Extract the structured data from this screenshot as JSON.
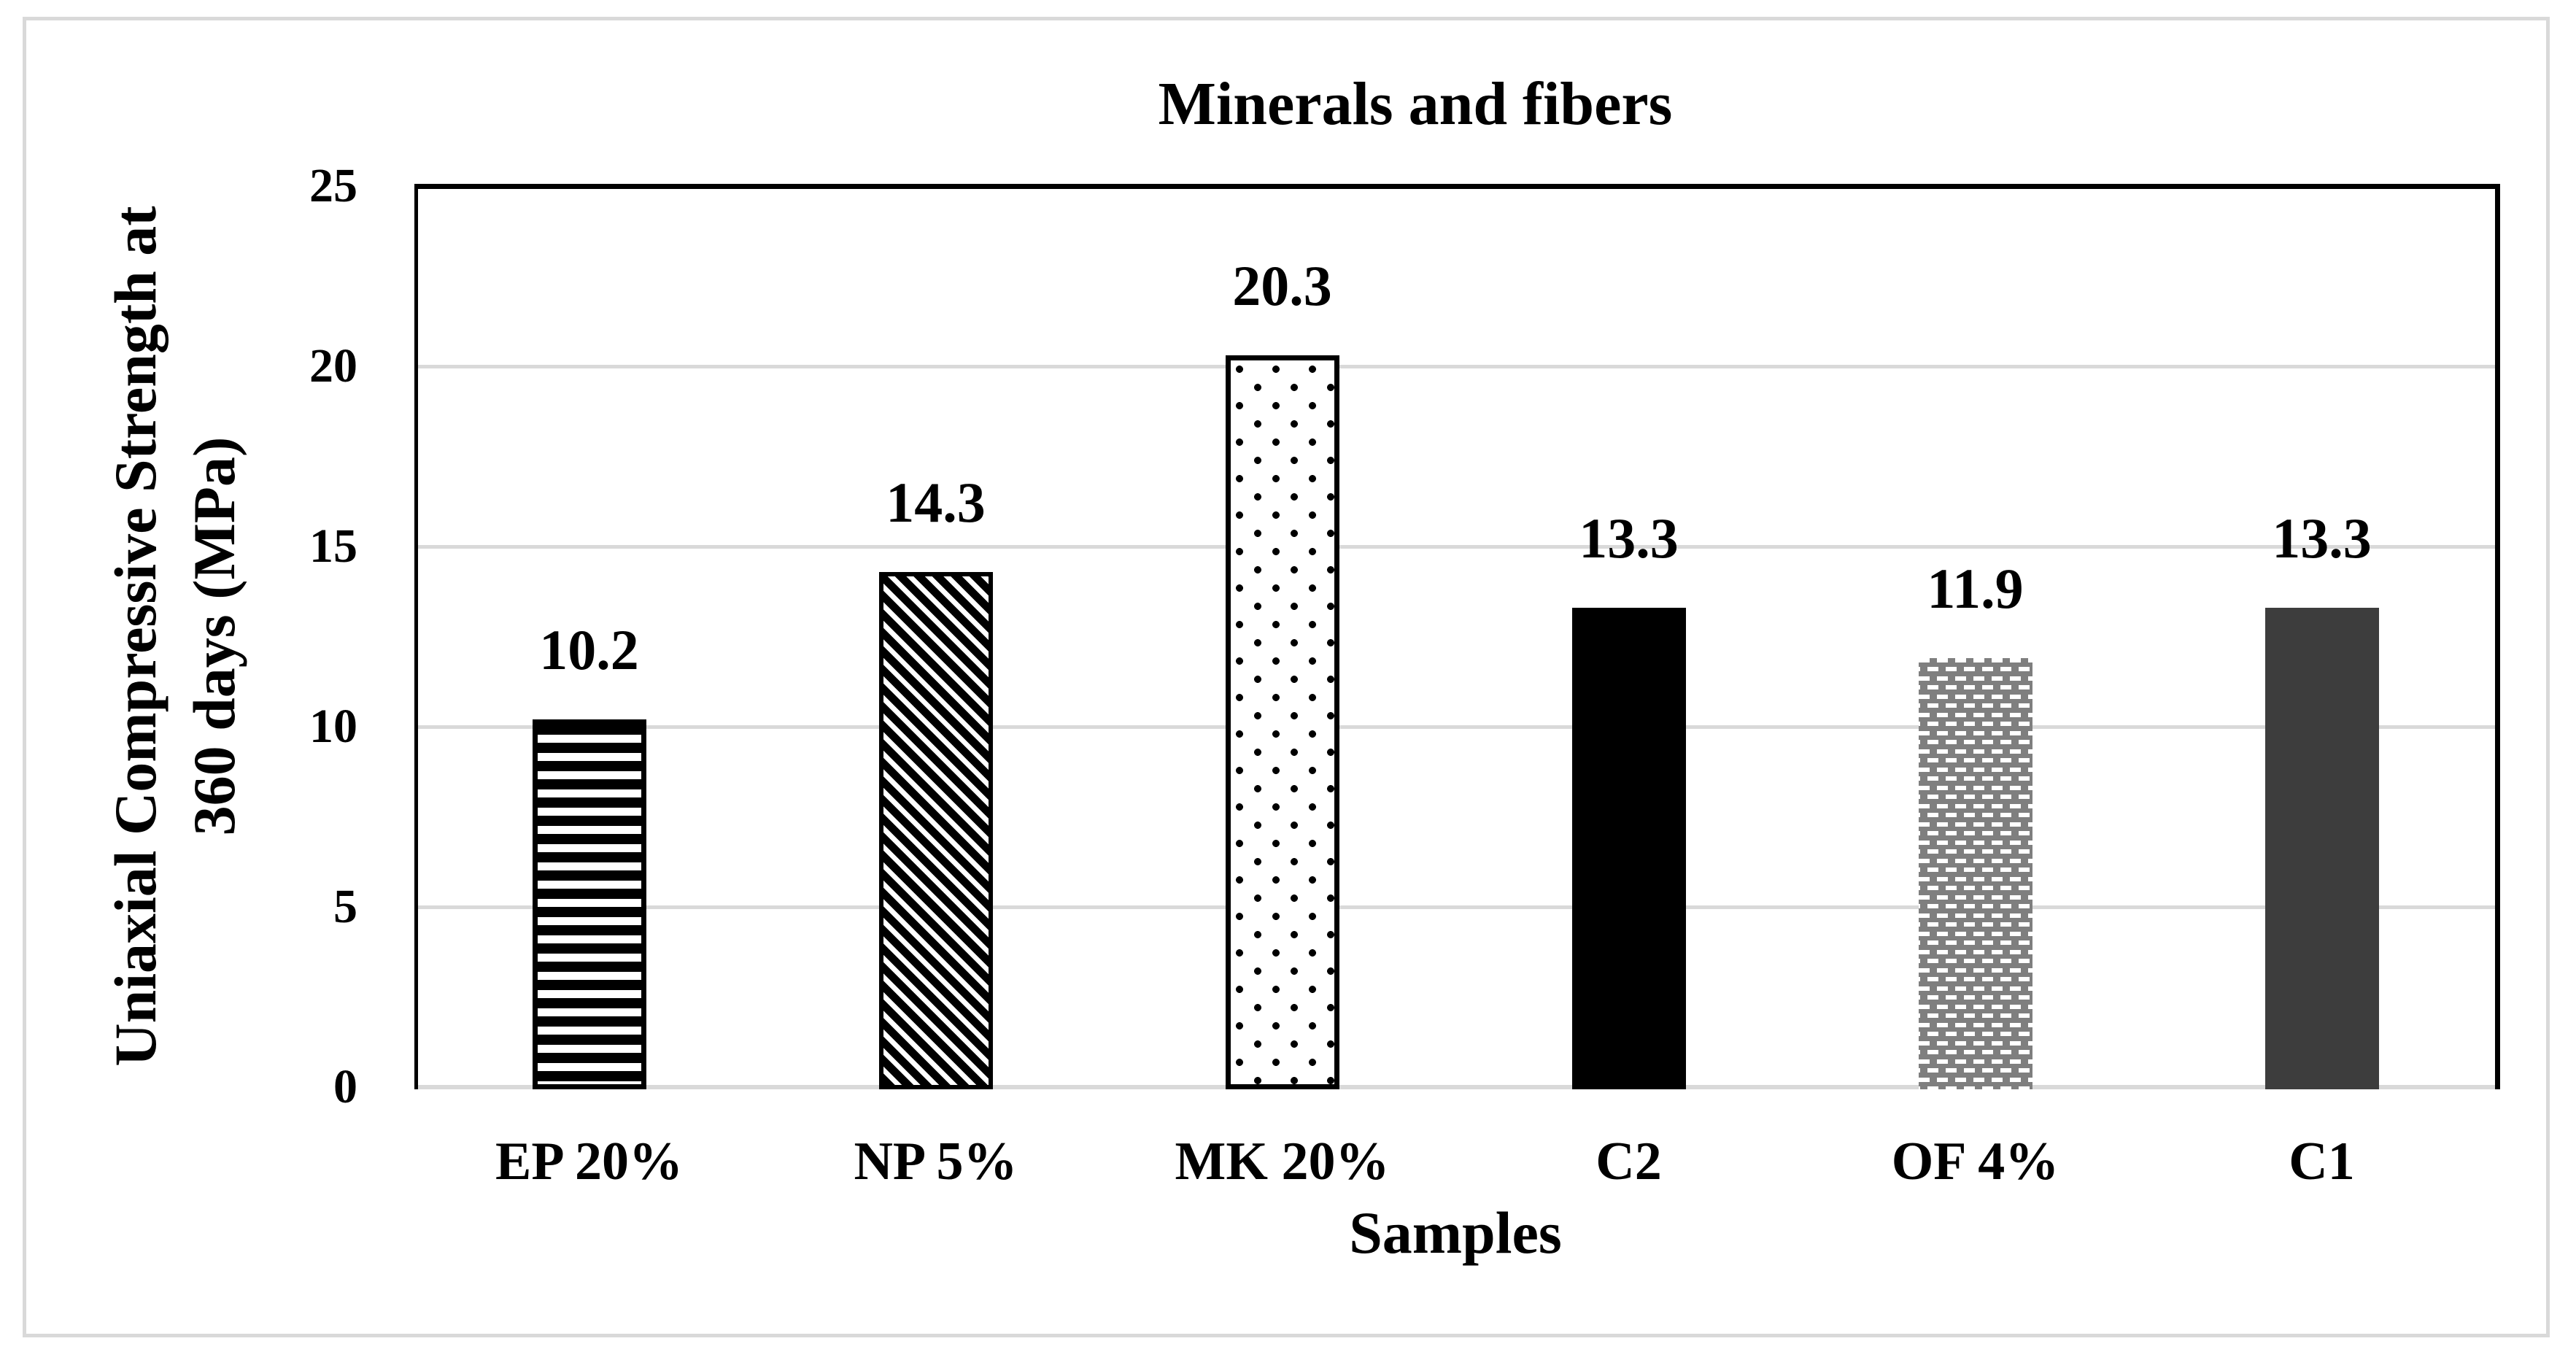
{
  "figure": {
    "background": "#ffffff",
    "frame_color": "#d9d9d9"
  },
  "chart_data": {
    "type": "bar",
    "title": "Minerals and fibers",
    "xlabel": "Samples",
    "ylabel": "Uniaxial Compressive Strength at 360 days (MPa)",
    "ylabel_line1": "Uniaxial Compressive Strength at",
    "ylabel_line2": "360 days (MPa)",
    "categories": [
      "EP 20%",
      "NP 5%",
      "MK 20%",
      "C2",
      "OF 4%",
      "C1"
    ],
    "values": [
      10.2,
      14.3,
      20.3,
      13.3,
      11.9,
      13.3
    ],
    "value_labels": [
      "10.2",
      "14.3",
      "20.3",
      "13.3",
      "11.9",
      "13.3"
    ],
    "bar_patterns": [
      "horizontal-stripes",
      "diagonal-stripes",
      "dots",
      "solid-black",
      "gray-dashes",
      "solid-darkgray"
    ],
    "ylim": [
      0,
      25
    ],
    "yticks": [
      0,
      5,
      10,
      15,
      20,
      25
    ],
    "ytick_labels": [
      "0",
      "5",
      "10",
      "15",
      "20",
      "25"
    ],
    "grid": true,
    "legend": "none",
    "colors": {
      "solid_black": "#000000",
      "solid_darkgray": "#3d3d3d",
      "pattern_gray": "#7f7f7f",
      "gridline": "#d9d9d9",
      "axis_line": "#000000",
      "text": "#000000"
    }
  }
}
